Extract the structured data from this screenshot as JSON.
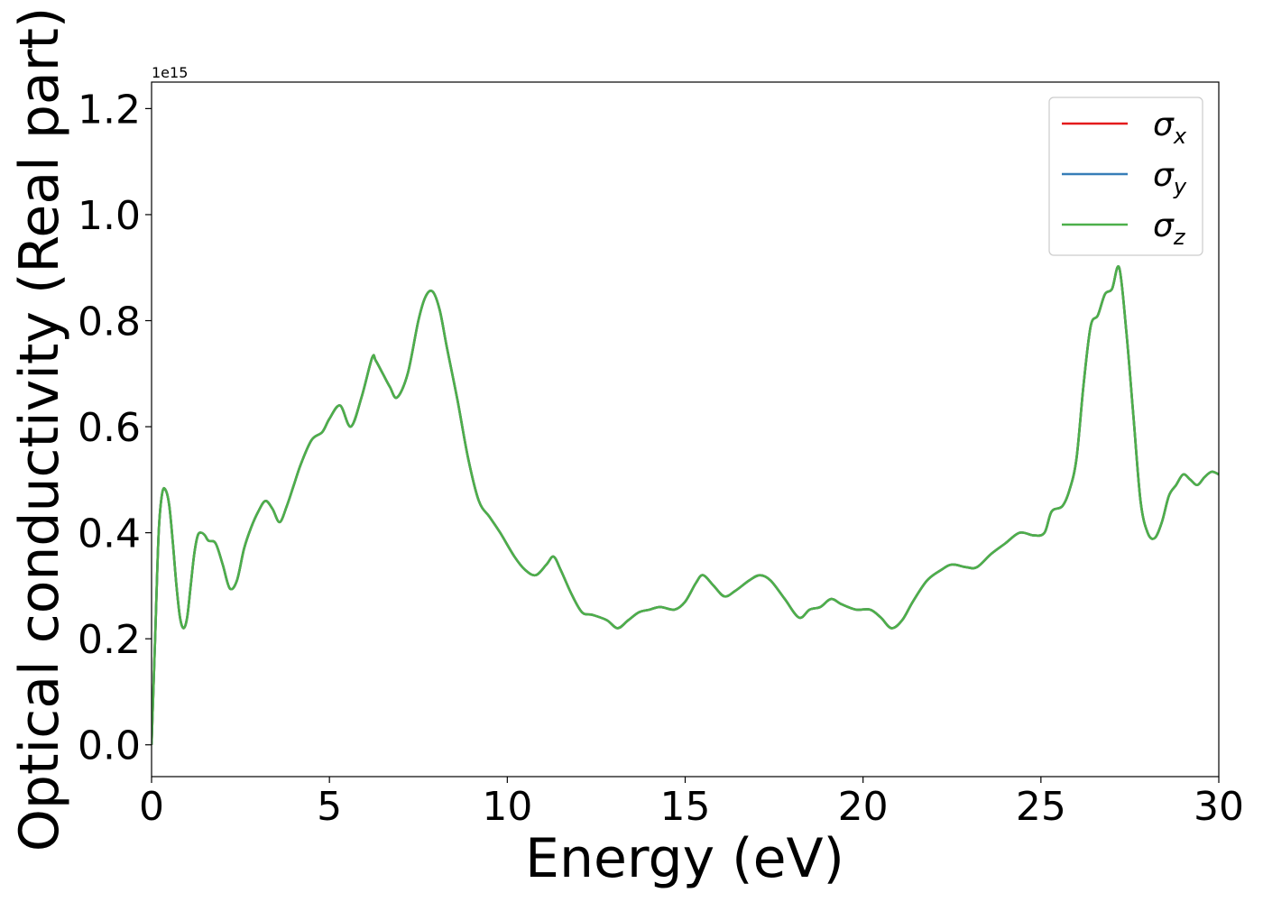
{
  "chart_data": {
    "type": "line",
    "title": "",
    "xlabel": "Energy (eV)",
    "ylabel": "Optical conductivity (Real part)",
    "y_offset_label": "1e15",
    "xlim": [
      0,
      30
    ],
    "ylim": [
      -0.06,
      1.25
    ],
    "xticks": [
      0,
      5,
      10,
      15,
      20,
      25,
      30
    ],
    "xtick_labels": [
      "0",
      "5",
      "10",
      "15",
      "20",
      "25",
      "30"
    ],
    "yticks": [
      0.0,
      0.2,
      0.4,
      0.6,
      0.8,
      1.0,
      1.2
    ],
    "ytick_labels": [
      "0.0",
      "0.2",
      "0.4",
      "0.6",
      "0.8",
      "1.0",
      "1.2"
    ],
    "grid": false,
    "legend_position": "top-right",
    "series": [
      {
        "name": "σ",
        "sub": "x",
        "color": "#e41a1c",
        "x": [
          0,
          0.1,
          0.2,
          0.3,
          0.4,
          0.5,
          0.6,
          0.7,
          0.8,
          0.9,
          1.0,
          1.1,
          1.2,
          1.3,
          1.4,
          1.5,
          1.6,
          1.8,
          2.0,
          2.2,
          2.4,
          2.6,
          2.8,
          3.0,
          3.2,
          3.4,
          3.6,
          3.8,
          4.0,
          4.2,
          4.5,
          4.8,
          5.0,
          5.3,
          5.6,
          5.9,
          6.2,
          6.3,
          6.5,
          6.7,
          6.9,
          7.2,
          7.5,
          7.7,
          7.9,
          8.1,
          8.3,
          8.6,
          8.9,
          9.2,
          9.5,
          9.8,
          10.2,
          10.5,
          10.8,
          11.1,
          11.3,
          11.5,
          11.8,
          12.1,
          12.4,
          12.8,
          13.1,
          13.4,
          13.7,
          14.0,
          14.3,
          14.7,
          15.0,
          15.3,
          15.5,
          15.8,
          16.1,
          16.4,
          16.8,
          17.1,
          17.4,
          17.8,
          18.2,
          18.5,
          18.8,
          19.1,
          19.4,
          19.8,
          20.2,
          20.5,
          20.8,
          21.1,
          21.4,
          21.8,
          22.2,
          22.5,
          22.9,
          23.2,
          23.6,
          24.0,
          24.4,
          24.8,
          25.1,
          25.3,
          25.6,
          25.8,
          26.0,
          26.2,
          26.4,
          26.6,
          26.8,
          27.0,
          27.2,
          27.4,
          27.6,
          27.8,
          28.0,
          28.2,
          28.4,
          28.6,
          28.8,
          29.0,
          29.2,
          29.4,
          29.6,
          29.8,
          30.0
        ],
        "y": [
          0.0,
          0.2,
          0.4,
          0.475,
          0.48,
          0.45,
          0.38,
          0.3,
          0.24,
          0.22,
          0.24,
          0.3,
          0.36,
          0.395,
          0.4,
          0.395,
          0.385,
          0.38,
          0.34,
          0.295,
          0.31,
          0.37,
          0.41,
          0.44,
          0.46,
          0.445,
          0.42,
          0.45,
          0.49,
          0.53,
          0.575,
          0.59,
          0.615,
          0.64,
          0.6,
          0.655,
          0.73,
          0.725,
          0.7,
          0.675,
          0.655,
          0.7,
          0.8,
          0.845,
          0.855,
          0.82,
          0.75,
          0.65,
          0.54,
          0.46,
          0.43,
          0.4,
          0.355,
          0.33,
          0.32,
          0.34,
          0.355,
          0.33,
          0.285,
          0.25,
          0.245,
          0.235,
          0.22,
          0.235,
          0.25,
          0.255,
          0.26,
          0.255,
          0.27,
          0.305,
          0.32,
          0.3,
          0.28,
          0.29,
          0.31,
          0.32,
          0.31,
          0.275,
          0.24,
          0.255,
          0.26,
          0.275,
          0.265,
          0.255,
          0.255,
          0.24,
          0.22,
          0.235,
          0.27,
          0.31,
          0.33,
          0.34,
          0.335,
          0.335,
          0.36,
          0.38,
          0.4,
          0.395,
          0.4,
          0.44,
          0.45,
          0.48,
          0.54,
          0.68,
          0.79,
          0.81,
          0.85,
          0.86,
          0.9,
          0.78,
          0.62,
          0.46,
          0.4,
          0.39,
          0.42,
          0.47,
          0.49,
          0.51,
          0.5,
          0.49,
          0.505,
          0.515,
          0.51
        ]
      },
      {
        "name": "σ",
        "sub": "y",
        "color": "#377eb8",
        "x": [
          0,
          0.1,
          0.2,
          0.3,
          0.4,
          0.5,
          0.6,
          0.7,
          0.8,
          0.9,
          1.0,
          1.1,
          1.2,
          1.3,
          1.4,
          1.5,
          1.6,
          1.8,
          2.0,
          2.2,
          2.4,
          2.6,
          2.8,
          3.0,
          3.2,
          3.4,
          3.6,
          3.8,
          4.0,
          4.2,
          4.5,
          4.8,
          5.0,
          5.3,
          5.6,
          5.9,
          6.2,
          6.3,
          6.5,
          6.7,
          6.9,
          7.2,
          7.5,
          7.7,
          7.9,
          8.1,
          8.3,
          8.6,
          8.9,
          9.2,
          9.5,
          9.8,
          10.2,
          10.5,
          10.8,
          11.1,
          11.3,
          11.5,
          11.8,
          12.1,
          12.4,
          12.8,
          13.1,
          13.4,
          13.7,
          14.0,
          14.3,
          14.7,
          15.0,
          15.3,
          15.5,
          15.8,
          16.1,
          16.4,
          16.8,
          17.1,
          17.4,
          17.8,
          18.2,
          18.5,
          18.8,
          19.1,
          19.4,
          19.8,
          20.2,
          20.5,
          20.8,
          21.1,
          21.4,
          21.8,
          22.2,
          22.5,
          22.9,
          23.2,
          23.6,
          24.0,
          24.4,
          24.8,
          25.1,
          25.3,
          25.6,
          25.8,
          26.0,
          26.2,
          26.4,
          26.6,
          26.8,
          27.0,
          27.2,
          27.4,
          27.6,
          27.8,
          28.0,
          28.2,
          28.4,
          28.6,
          28.8,
          29.0,
          29.2,
          29.4,
          29.6,
          29.8,
          30.0
        ],
        "y": [
          0.0,
          0.2,
          0.4,
          0.475,
          0.48,
          0.45,
          0.38,
          0.3,
          0.24,
          0.22,
          0.24,
          0.3,
          0.36,
          0.395,
          0.4,
          0.395,
          0.385,
          0.38,
          0.34,
          0.295,
          0.31,
          0.37,
          0.41,
          0.44,
          0.46,
          0.445,
          0.42,
          0.45,
          0.49,
          0.53,
          0.575,
          0.59,
          0.615,
          0.64,
          0.6,
          0.655,
          0.73,
          0.725,
          0.7,
          0.675,
          0.655,
          0.7,
          0.8,
          0.845,
          0.855,
          0.82,
          0.75,
          0.65,
          0.54,
          0.46,
          0.43,
          0.4,
          0.355,
          0.33,
          0.32,
          0.34,
          0.355,
          0.33,
          0.285,
          0.25,
          0.245,
          0.235,
          0.22,
          0.235,
          0.25,
          0.255,
          0.26,
          0.255,
          0.27,
          0.305,
          0.32,
          0.3,
          0.28,
          0.29,
          0.31,
          0.32,
          0.31,
          0.275,
          0.24,
          0.255,
          0.26,
          0.275,
          0.265,
          0.255,
          0.255,
          0.24,
          0.22,
          0.235,
          0.27,
          0.31,
          0.33,
          0.34,
          0.335,
          0.335,
          0.36,
          0.38,
          0.4,
          0.395,
          0.4,
          0.44,
          0.45,
          0.48,
          0.54,
          0.68,
          0.79,
          0.81,
          0.85,
          0.86,
          0.9,
          0.78,
          0.62,
          0.46,
          0.4,
          0.39,
          0.42,
          0.47,
          0.49,
          0.51,
          0.5,
          0.49,
          0.505,
          0.515,
          0.51
        ]
      },
      {
        "name": "σ",
        "sub": "z",
        "color": "#4daf4a",
        "x": [
          0,
          0.1,
          0.2,
          0.3,
          0.4,
          0.5,
          0.6,
          0.7,
          0.8,
          0.9,
          1.0,
          1.1,
          1.2,
          1.3,
          1.4,
          1.5,
          1.6,
          1.8,
          2.0,
          2.2,
          2.4,
          2.6,
          2.8,
          3.0,
          3.2,
          3.4,
          3.6,
          3.8,
          4.0,
          4.2,
          4.5,
          4.8,
          5.0,
          5.3,
          5.6,
          5.9,
          6.2,
          6.3,
          6.5,
          6.7,
          6.9,
          7.2,
          7.5,
          7.7,
          7.9,
          8.1,
          8.3,
          8.6,
          8.9,
          9.2,
          9.5,
          9.8,
          10.2,
          10.5,
          10.8,
          11.1,
          11.3,
          11.5,
          11.8,
          12.1,
          12.4,
          12.8,
          13.1,
          13.4,
          13.7,
          14.0,
          14.3,
          14.7,
          15.0,
          15.3,
          15.5,
          15.8,
          16.1,
          16.4,
          16.8,
          17.1,
          17.4,
          17.8,
          18.2,
          18.5,
          18.8,
          19.1,
          19.4,
          19.8,
          20.2,
          20.5,
          20.8,
          21.1,
          21.4,
          21.8,
          22.2,
          22.5,
          22.9,
          23.2,
          23.6,
          24.0,
          24.4,
          24.8,
          25.1,
          25.3,
          25.6,
          25.8,
          26.0,
          26.2,
          26.4,
          26.6,
          26.8,
          27.0,
          27.2,
          27.4,
          27.6,
          27.8,
          28.0,
          28.2,
          28.4,
          28.6,
          28.8,
          29.0,
          29.2,
          29.4,
          29.6,
          29.8,
          30.0
        ],
        "y": [
          0.0,
          0.2,
          0.4,
          0.475,
          0.48,
          0.45,
          0.38,
          0.3,
          0.24,
          0.22,
          0.24,
          0.3,
          0.36,
          0.395,
          0.4,
          0.395,
          0.385,
          0.38,
          0.34,
          0.295,
          0.31,
          0.37,
          0.41,
          0.44,
          0.46,
          0.445,
          0.42,
          0.45,
          0.49,
          0.53,
          0.575,
          0.59,
          0.615,
          0.64,
          0.6,
          0.655,
          0.73,
          0.725,
          0.7,
          0.675,
          0.655,
          0.7,
          0.8,
          0.845,
          0.855,
          0.82,
          0.75,
          0.65,
          0.54,
          0.46,
          0.43,
          0.4,
          0.355,
          0.33,
          0.32,
          0.34,
          0.355,
          0.33,
          0.285,
          0.25,
          0.245,
          0.235,
          0.22,
          0.235,
          0.25,
          0.255,
          0.26,
          0.255,
          0.27,
          0.305,
          0.32,
          0.3,
          0.28,
          0.29,
          0.31,
          0.32,
          0.31,
          0.275,
          0.24,
          0.255,
          0.26,
          0.275,
          0.265,
          0.255,
          0.255,
          0.24,
          0.22,
          0.235,
          0.27,
          0.31,
          0.33,
          0.34,
          0.335,
          0.335,
          0.36,
          0.38,
          0.4,
          0.395,
          0.4,
          0.44,
          0.45,
          0.48,
          0.54,
          0.68,
          0.79,
          0.81,
          0.85,
          0.86,
          0.9,
          0.78,
          0.62,
          0.46,
          0.4,
          0.39,
          0.42,
          0.47,
          0.49,
          0.51,
          0.5,
          0.49,
          0.505,
          0.515,
          0.51
        ]
      }
    ]
  }
}
